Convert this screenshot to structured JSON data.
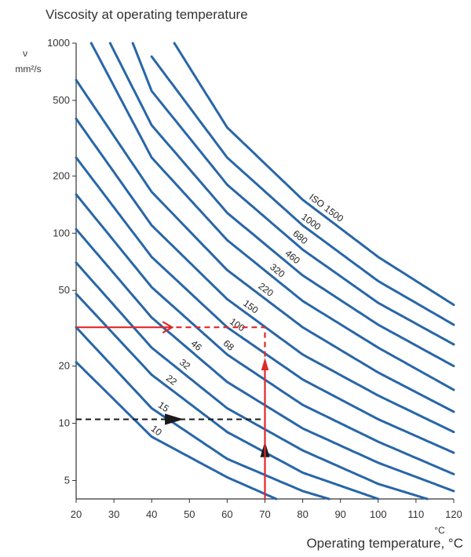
{
  "chart_data": {
    "type": "line",
    "title": "Viscosity at operating temperature",
    "ylabel_symbol": "ν",
    "ylabel_unit": "mm²/s",
    "xlabel": "Operating temperature, °C",
    "x_unit": "°C",
    "x_ticks": [
      20,
      30,
      40,
      50,
      60,
      70,
      80,
      90,
      100,
      110,
      120
    ],
    "y_ticks": [
      5,
      10,
      20,
      50,
      100,
      200,
      500,
      1000
    ],
    "xlim": [
      20,
      120
    ],
    "ylim": [
      4,
      1000
    ],
    "y_scale": "log",
    "curve_color": "#2866a8",
    "series": [
      {
        "name": "10",
        "x": [
          20,
          40,
          60,
          73
        ],
        "y": [
          21,
          8.5,
          5.2,
          4
        ]
      },
      {
        "name": "15",
        "x": [
          20,
          40,
          60,
          80,
          87
        ],
        "y": [
          32,
          12,
          6.5,
          4.4,
          4
        ]
      },
      {
        "name": "22",
        "x": [
          20,
          40,
          60,
          80,
          100
        ],
        "y": [
          48,
          18,
          9,
          5.5,
          4
        ]
      },
      {
        "name": "32",
        "x": [
          20,
          40,
          60,
          80,
          100,
          113
        ],
        "y": [
          70,
          25,
          12,
          7.2,
          4.8,
          4
        ]
      },
      {
        "name": "46",
        "x": [
          20,
          40,
          60,
          80,
          100,
          120
        ],
        "y": [
          105,
          36,
          16.5,
          9.4,
          6.2,
          4.4
        ]
      },
      {
        "name": "68",
        "x": [
          20,
          40,
          60,
          80,
          100,
          120
        ],
        "y": [
          160,
          52,
          23,
          12.5,
          8,
          5.4
        ]
      },
      {
        "name": "100",
        "x": [
          20,
          40,
          60,
          80,
          100,
          120
        ],
        "y": [
          250,
          75,
          32,
          17,
          10.5,
          7
        ]
      },
      {
        "name": "150",
        "x": [
          20,
          40,
          60,
          80,
          100,
          120
        ],
        "y": [
          400,
          110,
          45,
          23,
          14,
          9
        ]
      },
      {
        "name": "220",
        "x": [
          20,
          40,
          60,
          80,
          100,
          120
        ],
        "y": [
          640,
          165,
          64,
          32,
          18.5,
          11.5
        ]
      },
      {
        "name": "320",
        "x": [
          24,
          40,
          60,
          80,
          100,
          120
        ],
        "y": [
          1000,
          250,
          92,
          44,
          25,
          15
        ]
      },
      {
        "name": "460",
        "x": [
          29,
          40,
          60,
          80,
          100,
          120
        ],
        "y": [
          1000,
          370,
          128,
          60,
          33,
          20
        ]
      },
      {
        "name": "680",
        "x": [
          35,
          40,
          60,
          80,
          100,
          120
        ],
        "y": [
          1000,
          560,
          180,
          82,
          43,
          26
        ]
      },
      {
        "name": "1000",
        "x": [
          40,
          60,
          80,
          100,
          120
        ],
        "y": [
          850,
          250,
          110,
          56,
          33
        ]
      },
      {
        "name": "ISO 1500",
        "x": [
          46,
          60,
          80,
          100,
          120
        ],
        "y": [
          1000,
          360,
          150,
          75,
          42
        ]
      }
    ],
    "example_red": {
      "color": "#e0282b",
      "x": 70,
      "y": 32,
      "y_start": 4,
      "x_start": 20
    },
    "example_black": {
      "color": "#1a1a1a",
      "x": 70,
      "y": 10.5,
      "y_start": 4,
      "x_start": 20
    },
    "grid": false
  }
}
